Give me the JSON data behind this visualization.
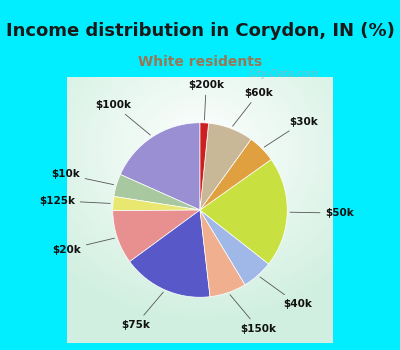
{
  "title": "Income distribution in Corydon, IN (%)",
  "subtitle": "White residents",
  "title_color": "#1a1a1a",
  "subtitle_color": "#997755",
  "background_outer": "#00eeff",
  "background_inner_color1": "#d0ede0",
  "background_inner_color2": "#f0faf5",
  "labels": [
    "$100k",
    "$10k",
    "$125k",
    "$20k",
    "$75k",
    "$150k",
    "$40k",
    "$50k",
    "$30k",
    "$60k",
    "$200k"
  ],
  "sizes": [
    17.5,
    4.0,
    2.5,
    9.5,
    16.0,
    6.5,
    5.5,
    19.5,
    5.0,
    8.0,
    1.5
  ],
  "colors": [
    "#9b8fd4",
    "#a8c8a0",
    "#e8e870",
    "#e89090",
    "#5858c8",
    "#f0b090",
    "#a0b8e8",
    "#c8e040",
    "#e0a040",
    "#c8b898",
    "#cc2020"
  ],
  "startangle": 90,
  "label_fontsize": 7.5,
  "title_fontsize": 13,
  "subtitle_fontsize": 10,
  "watermark": "City-Data.com"
}
